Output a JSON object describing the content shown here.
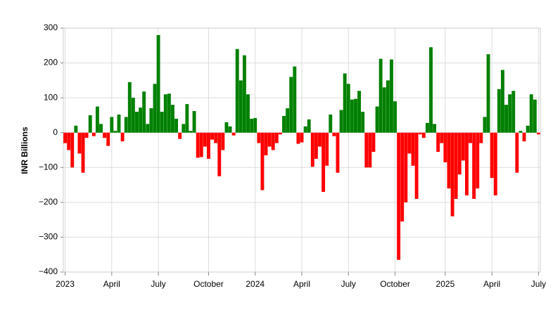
{
  "chart_data": {
    "type": "bar",
    "y_label": "INR Billions",
    "categories": [
      "2023",
      null,
      null,
      null,
      null,
      null,
      null,
      null,
      null,
      null,
      null,
      null,
      null,
      "April",
      null,
      null,
      null,
      null,
      null,
      null,
      null,
      null,
      null,
      null,
      null,
      null,
      "July",
      null,
      null,
      null,
      null,
      null,
      null,
      null,
      null,
      null,
      null,
      null,
      null,
      null,
      "October",
      null,
      null,
      null,
      null,
      null,
      null,
      null,
      null,
      null,
      null,
      null,
      null,
      "2024",
      null,
      null,
      null,
      null,
      null,
      null,
      null,
      null,
      null,
      null,
      null,
      null,
      "April",
      null,
      null,
      null,
      null,
      null,
      null,
      null,
      null,
      null,
      null,
      null,
      null,
      "July",
      null,
      null,
      null,
      null,
      null,
      null,
      null,
      null,
      null,
      null,
      null,
      null,
      "October",
      null,
      null,
      null,
      null,
      null,
      null,
      null,
      null,
      null,
      null,
      null,
      null,
      null,
      "2025",
      null,
      null,
      null,
      null,
      null,
      null,
      null,
      null,
      null,
      null,
      null,
      null,
      "April",
      null,
      null,
      null,
      null,
      null,
      null,
      null,
      null,
      null,
      null,
      null,
      null,
      "July"
    ],
    "values": [
      -30,
      -50,
      -100,
      20,
      -60,
      -115,
      -15,
      50,
      -10,
      75,
      25,
      -15,
      -38,
      45,
      5,
      52,
      -25,
      45,
      145,
      100,
      60,
      72,
      118,
      25,
      70,
      140,
      280,
      60,
      110,
      112,
      80,
      40,
      -18,
      25,
      82,
      5,
      62,
      -72,
      -70,
      -40,
      -75,
      -20,
      -30,
      -125,
      -50,
      30,
      18,
      -8,
      240,
      150,
      222,
      110,
      40,
      42,
      -30,
      -165,
      -65,
      -40,
      -50,
      -30,
      -5,
      48,
      70,
      160,
      190,
      -32,
      -28,
      18,
      38,
      -98,
      -75,
      -40,
      -170,
      -95,
      52,
      -10,
      -115,
      65,
      170,
      140,
      95,
      97,
      120,
      60,
      -100,
      -100,
      -55,
      75,
      212,
      130,
      150,
      210,
      90,
      -365,
      -255,
      -200,
      -60,
      -95,
      -190,
      -5,
      -15,
      28,
      245,
      25,
      -55,
      -30,
      -85,
      -160,
      -240,
      -190,
      -120,
      -80,
      -180,
      -30,
      -190,
      -160,
      -30,
      45,
      225,
      -130,
      -180,
      125,
      180,
      80,
      110,
      120,
      -115,
      5,
      -25,
      20,
      110,
      95,
      -5
    ],
    "positive_color": "#008000",
    "negative_color": "#ff0000",
    "ylim": [
      -400,
      300
    ],
    "yticks": [
      {
        "value": -400,
        "label": "−400"
      },
      {
        "value": -300,
        "label": "−300"
      },
      {
        "value": -200,
        "label": "−200"
      },
      {
        "value": -100,
        "label": "−100"
      },
      0,
      100,
      200,
      300
    ],
    "grid": true
  }
}
